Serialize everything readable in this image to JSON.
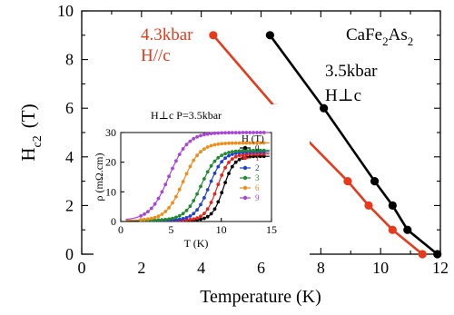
{
  "chart_data": [
    {
      "type": "line",
      "xlabel": "Temperature (K)",
      "ylabel_main": "H",
      "ylabel_sub": "c2",
      "ylabel_unit": "(T)",
      "xlim": [
        0,
        12
      ],
      "ylim": [
        0,
        10
      ],
      "xticks": [
        0,
        2,
        4,
        6,
        8,
        10,
        12
      ],
      "yticks": [
        0,
        2,
        4,
        6,
        8,
        10
      ],
      "compound": {
        "base1": "CaFe",
        "sub1": "2",
        "base2": "As",
        "sub2": "2"
      },
      "series": [
        {
          "name_line1": "4.3kbar",
          "name_line2": "H//c",
          "color": "#e8391a",
          "x": [
            4.4,
            6.5,
            8.9,
            9.6,
            10.4,
            11.4
          ],
          "y": [
            9.0,
            6.0,
            3.0,
            2.0,
            1.0,
            0.0
          ]
        },
        {
          "name_line1": "3.5kbar",
          "name_line2": "H⊥c",
          "color": "#000000",
          "x": [
            6.3,
            8.1,
            9.8,
            10.4,
            10.9,
            11.9
          ],
          "y": [
            9.0,
            6.0,
            3.0,
            2.0,
            1.0,
            0.0
          ]
        }
      ]
    },
    {
      "type": "line",
      "title": "H⊥c   P=3.5kbar",
      "xlabel": "T (K)",
      "ylabel": "ρ (mΩ.cm)",
      "legend_title": "H (T)",
      "xlim": [
        0,
        15
      ],
      "ylim": [
        0,
        30
      ],
      "xticks": [
        0,
        5,
        10,
        15
      ],
      "yticks": [
        0,
        10,
        20,
        30
      ],
      "series": [
        {
          "name": "0",
          "color": "#000000",
          "onset": 9.2,
          "high": 22.0,
          "width": 0.55
        },
        {
          "name": "1",
          "color": "#e8231c",
          "onset": 8.6,
          "high": 22.8,
          "width": 0.6
        },
        {
          "name": "2",
          "color": "#1f3fd6",
          "onset": 7.8,
          "high": 23.5,
          "width": 0.7
        },
        {
          "name": "3",
          "color": "#1f8a2e",
          "onset": 7.0,
          "high": 24.0,
          "width": 0.8
        },
        {
          "name": "6",
          "color": "#f08c18",
          "onset": 5.2,
          "high": 26.5,
          "width": 0.85
        },
        {
          "name": "9",
          "color": "#a844d8",
          "onset": 3.8,
          "high": 30.0,
          "width": 0.95
        }
      ]
    }
  ]
}
